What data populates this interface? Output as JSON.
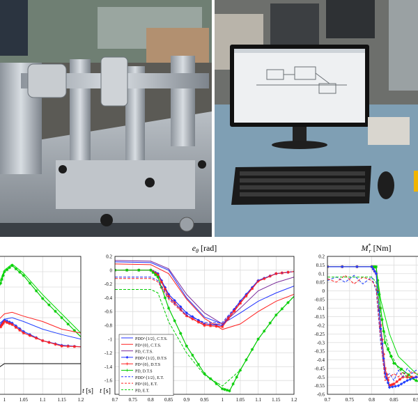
{
  "photos": {
    "left_icon": "test-rig-photo",
    "right_icon": "workstation-photo"
  },
  "chart_data": [
    {
      "type": "line",
      "panel": "left",
      "title": "",
      "xlabel": "t [s]",
      "ylabel": "",
      "xlim": [
        0.97,
        1.2
      ],
      "ylim": [
        0,
        1.8
      ],
      "xticks": [
        "1",
        "1.05",
        "1.1",
        "1.15",
        "1.2"
      ],
      "grid": true,
      "series": [
        {
          "color": "#00cc00",
          "marker": "star",
          "x": [
            0.97,
            0.99,
            1.0,
            1.02,
            1.05,
            1.1,
            1.15,
            1.2
          ],
          "y": [
            1.2,
            1.45,
            1.6,
            1.68,
            1.55,
            1.25,
            1.0,
            0.75
          ]
        },
        {
          "color": "#00dd00",
          "marker": "none",
          "x": [
            0.97,
            0.99,
            1.0,
            1.02,
            1.05,
            1.1,
            1.15,
            1.2
          ],
          "y": [
            1.25,
            1.5,
            1.62,
            1.7,
            1.58,
            1.3,
            1.05,
            0.8
          ]
        },
        {
          "color": "#ff2020",
          "marker": "none",
          "x": [
            0.97,
            1.0,
            1.02,
            1.05,
            1.1,
            1.15,
            1.2
          ],
          "y": [
            0.9,
            1.05,
            1.07,
            1.02,
            0.95,
            0.85,
            0.8
          ]
        },
        {
          "color": "#2040ff",
          "marker": "none",
          "x": [
            0.97,
            1.0,
            1.02,
            1.05,
            1.1,
            1.15,
            1.2
          ],
          "y": [
            0.85,
            0.98,
            1.0,
            0.95,
            0.85,
            0.78,
            0.72
          ]
        },
        {
          "color": "#2040ff",
          "marker": "diamond",
          "x": [
            0.97,
            0.99,
            1.0,
            1.02,
            1.05,
            1.1,
            1.15,
            1.2
          ],
          "y": [
            0.8,
            0.9,
            0.97,
            0.93,
            0.82,
            0.7,
            0.64,
            0.62
          ]
        },
        {
          "color": "#ff2020",
          "marker": "star",
          "x": [
            0.97,
            0.99,
            1.0,
            1.02,
            1.05,
            1.1,
            1.15,
            1.2
          ],
          "y": [
            0.78,
            0.88,
            0.95,
            0.91,
            0.8,
            0.7,
            0.63,
            0.62
          ]
        },
        {
          "color": "#000000",
          "marker": "none",
          "x": [
            0.97,
            0.985,
            1.0,
            1.2
          ],
          "y": [
            0.2,
            0.35,
            0.4,
            0.4
          ]
        }
      ]
    },
    {
      "type": "line",
      "panel": "middle",
      "title": "e_θ [rad]",
      "title_main": "e",
      "title_sub": "θ",
      "title_unit": " [rad]",
      "xlabel": "t [s]",
      "ylabel": "",
      "xlim": [
        0.7,
        1.2
      ],
      "ylim": [
        -1.8,
        0.2
      ],
      "xticks": [
        "0.7",
        "0.75",
        "0.8",
        "0.85",
        "0.9",
        "0.95",
        "1",
        "1.05",
        "1.1",
        "1.15",
        "1.2"
      ],
      "yticks": [
        "0.2",
        "0",
        "-0.2",
        "-0.4",
        "-0.6",
        "-0.8",
        "-1",
        "-1.2",
        "-1.4",
        "-1.6"
      ],
      "grid": true,
      "legend_position": "bottom-left",
      "series": [
        {
          "name": "PDD^{1/2}, C.T.S.",
          "color": "#2030ff",
          "dash": "solid",
          "marker": "none",
          "x": [
            0.7,
            0.8,
            0.85,
            0.9,
            0.95,
            1.0,
            1.05,
            1.1,
            1.15,
            1.2
          ],
          "y": [
            0.12,
            0.11,
            0.0,
            -0.4,
            -0.68,
            -0.78,
            -0.62,
            -0.45,
            -0.33,
            -0.23
          ]
        },
        {
          "name": "PD^{0}, C.T.S.",
          "color": "#ff2020",
          "dash": "solid",
          "marker": "none",
          "x": [
            0.7,
            0.8,
            0.85,
            0.9,
            0.95,
            1.0,
            1.05,
            1.1,
            1.15,
            1.2
          ],
          "y": [
            0.09,
            0.08,
            -0.05,
            -0.42,
            -0.7,
            -0.86,
            -0.78,
            -0.6,
            -0.45,
            -0.35
          ]
        },
        {
          "name": "PD, C.T.S.",
          "color": "#7a2a9a",
          "dash": "solid",
          "marker": "none",
          "x": [
            0.7,
            0.8,
            0.85,
            0.9,
            0.95,
            1.0,
            1.05,
            1.1,
            1.15,
            1.2
          ],
          "y": [
            0.14,
            0.13,
            0.02,
            -0.35,
            -0.62,
            -0.78,
            -0.55,
            -0.3,
            -0.18,
            -0.1
          ]
        },
        {
          "name": "PDD^{1/2}, D.T.S",
          "color": "#2030ff",
          "dash": "solid",
          "marker": "diamond",
          "x": [
            0.7,
            0.8,
            0.82,
            0.85,
            0.9,
            0.95,
            1.0,
            1.05,
            1.1,
            1.15,
            1.2
          ],
          "y": [
            0.0,
            0.0,
            -0.05,
            -0.35,
            -0.62,
            -0.78,
            -0.8,
            -0.45,
            -0.15,
            -0.05,
            -0.02
          ]
        },
        {
          "name": "PD^{0}, D.T.S",
          "color": "#ff2020",
          "dash": "solid",
          "marker": "star",
          "x": [
            0.7,
            0.8,
            0.82,
            0.85,
            0.9,
            0.95,
            1.0,
            1.05,
            1.1,
            1.15,
            1.2
          ],
          "y": [
            0.0,
            0.0,
            -0.07,
            -0.38,
            -0.66,
            -0.8,
            -0.82,
            -0.48,
            -0.16,
            -0.05,
            -0.02
          ]
        },
        {
          "name": "PD, D.T.S",
          "color": "#00cc00",
          "dash": "solid",
          "marker": "star",
          "x": [
            0.7,
            0.8,
            0.82,
            0.85,
            0.9,
            0.95,
            1.0,
            1.02,
            1.05,
            1.1,
            1.15,
            1.2
          ],
          "y": [
            0.0,
            0.0,
            -0.1,
            -0.55,
            -1.1,
            -1.5,
            -1.72,
            -1.75,
            -1.45,
            -1.0,
            -0.65,
            -0.38
          ]
        },
        {
          "name": "PDD^{1/2}, E.T.",
          "color": "#2030ff",
          "dash": "dashed",
          "marker": "none",
          "x": [
            0.7,
            0.8,
            0.82,
            0.85,
            0.9,
            0.95,
            1.0,
            1.05,
            1.1,
            1.15,
            1.2
          ],
          "y": [
            -0.1,
            -0.1,
            -0.15,
            -0.4,
            -0.65,
            -0.76,
            -0.76,
            -0.45,
            -0.15,
            -0.05,
            -0.02
          ]
        },
        {
          "name": "PD^{0}, E.T.",
          "color": "#ff2020",
          "dash": "dashed",
          "marker": "none",
          "x": [
            0.7,
            0.8,
            0.82,
            0.85,
            0.9,
            0.95,
            1.0,
            1.05,
            1.1,
            1.15,
            1.2
          ],
          "y": [
            -0.12,
            -0.12,
            -0.17,
            -0.42,
            -0.67,
            -0.78,
            -0.78,
            -0.47,
            -0.16,
            -0.05,
            -0.02
          ]
        },
        {
          "name": "PD, E.T.",
          "color": "#00cc00",
          "dash": "dashed",
          "marker": "none",
          "x": [
            0.7,
            0.8,
            0.82,
            0.85,
            0.9,
            0.95,
            1.0,
            1.05,
            1.1,
            1.15,
            1.2
          ],
          "y": [
            -0.28,
            -0.28,
            -0.33,
            -0.75,
            -1.2,
            -1.52,
            -1.68,
            -1.45,
            -1.0,
            -0.65,
            -0.38
          ]
        }
      ]
    },
    {
      "type": "line",
      "panel": "right",
      "title": "M*_r [Nm]",
      "title_main": "M",
      "title_sup": "*",
      "title_sub": "r",
      "title_unit": " [Nm]",
      "xlabel": "",
      "ylabel": "",
      "xlim": [
        0.7,
        0.92
      ],
      "ylim": [
        -0.6,
        0.2
      ],
      "xticks": [
        "0.7",
        "0.75",
        "0.8",
        "0.85",
        "0.9"
      ],
      "yticks": [
        "0.2",
        "0.15",
        "0.1",
        "0.05",
        "0",
        "-0.05",
        "-0.1",
        "-0.15",
        "-0.2",
        "-0.25",
        "-0.3",
        "-0.35",
        "-0.4",
        "-0.45",
        "-0.5",
        "-0.55",
        "-0.6"
      ],
      "grid": true,
      "series": [
        {
          "color": "#00cc00",
          "marker": "star",
          "x": [
            0.7,
            0.8,
            0.81,
            0.82,
            0.83,
            0.85,
            0.9,
            0.92
          ],
          "y": [
            0.14,
            0.14,
            0.14,
            -0.1,
            -0.3,
            -0.42,
            -0.52,
            -0.54
          ]
        },
        {
          "color": "#00dd00",
          "marker": "none",
          "x": [
            0.7,
            0.8,
            0.81,
            0.82,
            0.84,
            0.86,
            0.9,
            0.92
          ],
          "y": [
            0.14,
            0.14,
            0.13,
            -0.05,
            -0.25,
            -0.38,
            -0.48,
            -0.52
          ]
        },
        {
          "color": "#ff2020",
          "marker": "star",
          "x": [
            0.7,
            0.8,
            0.81,
            0.82,
            0.83,
            0.84,
            0.85,
            0.87,
            0.9,
            0.92
          ],
          "y": [
            0.14,
            0.14,
            0.1,
            -0.2,
            -0.45,
            -0.55,
            -0.54,
            -0.5,
            -0.5,
            -0.5
          ]
        },
        {
          "color": "#2040ff",
          "marker": "diamond",
          "x": [
            0.7,
            0.8,
            0.81,
            0.82,
            0.83,
            0.84,
            0.86,
            0.88,
            0.9,
            0.92
          ],
          "y": [
            0.14,
            0.14,
            0.1,
            -0.22,
            -0.48,
            -0.56,
            -0.55,
            -0.52,
            -0.5,
            -0.5
          ]
        },
        {
          "color": "#2040ff",
          "dash": "dashed",
          "marker": "none",
          "x": [
            0.7,
            0.72,
            0.74,
            0.76,
            0.78,
            0.8,
            0.81,
            0.82,
            0.83,
            0.84,
            0.85,
            0.86,
            0.87,
            0.88,
            0.89,
            0.9,
            0.92
          ],
          "y": [
            0.06,
            0.08,
            0.05,
            0.09,
            0.04,
            0.08,
            0.0,
            -0.3,
            -0.5,
            -0.48,
            -0.52,
            -0.46,
            -0.5,
            -0.45,
            -0.48,
            -0.46,
            -0.47
          ]
        },
        {
          "color": "#ff2020",
          "dash": "dashed",
          "marker": "none",
          "x": [
            0.7,
            0.72,
            0.74,
            0.76,
            0.78,
            0.8,
            0.81,
            0.82,
            0.83,
            0.84,
            0.85,
            0.86,
            0.87,
            0.88,
            0.89,
            0.9,
            0.92
          ],
          "y": [
            0.07,
            0.05,
            0.09,
            0.04,
            0.08,
            0.06,
            0.02,
            -0.28,
            -0.52,
            -0.5,
            -0.48,
            -0.5,
            -0.47,
            -0.49,
            -0.47,
            -0.48,
            -0.48
          ]
        },
        {
          "color": "#00cc00",
          "dash": "dashed",
          "marker": "none",
          "x": [
            0.7,
            0.75,
            0.8,
            0.81,
            0.82,
            0.84,
            0.86,
            0.88,
            0.9,
            0.92
          ],
          "y": [
            0.08,
            0.08,
            0.08,
            0.05,
            -0.15,
            -0.35,
            -0.45,
            -0.5,
            -0.52,
            -0.54
          ]
        }
      ]
    }
  ]
}
